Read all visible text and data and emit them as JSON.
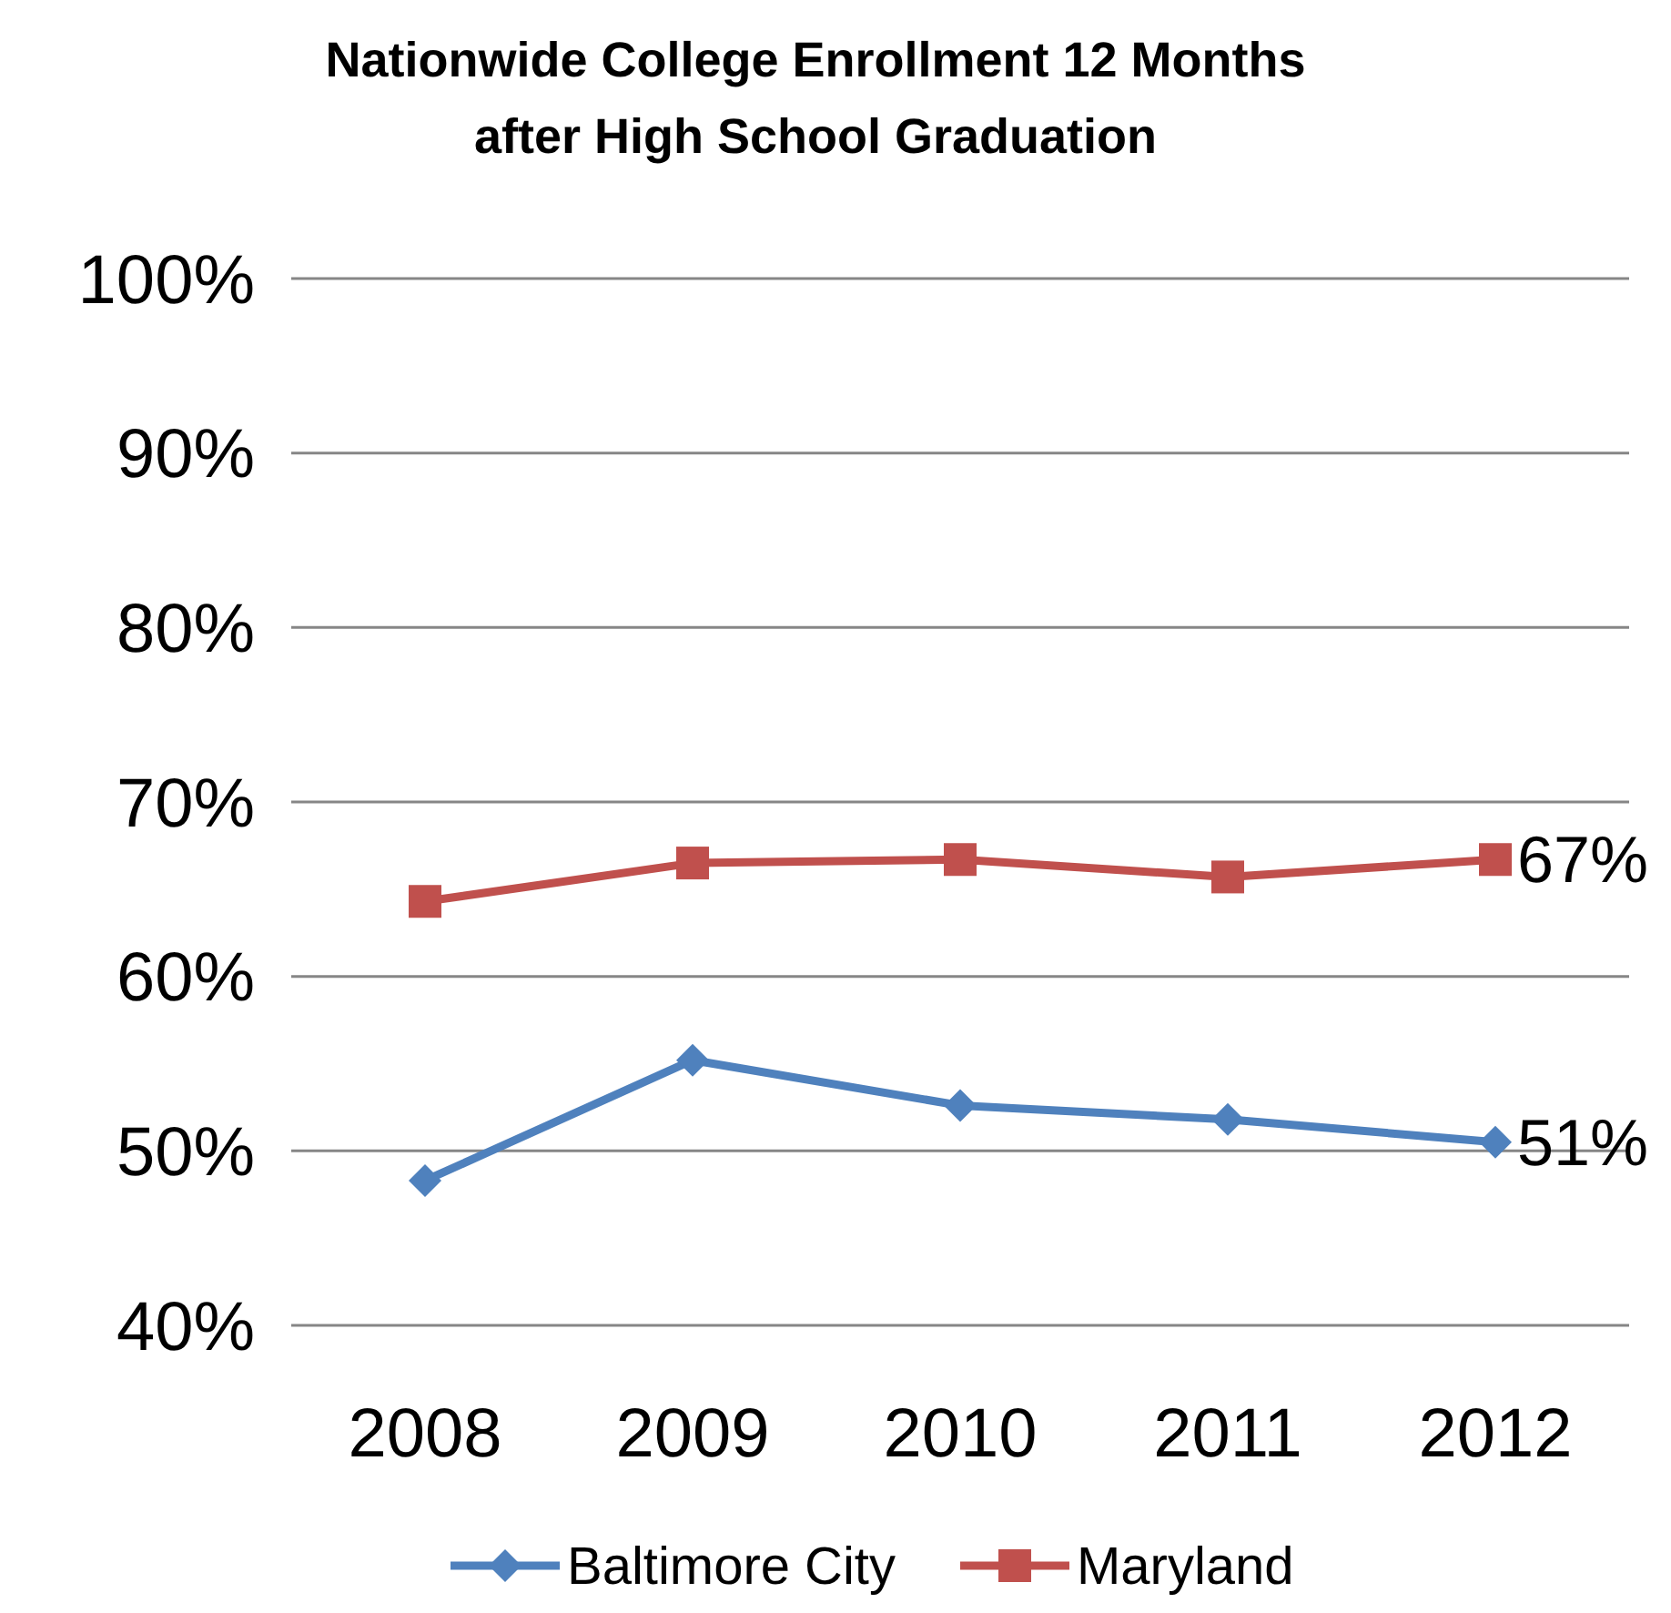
{
  "chart_data": {
    "type": "line",
    "title": "Nationwide College Enrollment 12 Months after High School Graduation",
    "categories": [
      "2008",
      "2009",
      "2010",
      "2011",
      "2012"
    ],
    "series": [
      {
        "name": "Baltimore City",
        "color": "#4f81bd",
        "marker": "diamond",
        "values": [
          48.3,
          55.2,
          52.6,
          51.8,
          50.5
        ],
        "value_labels": [
          null,
          null,
          null,
          null,
          "51%"
        ]
      },
      {
        "name": "Maryland",
        "color": "#c0504d",
        "marker": "square",
        "values": [
          64.3,
          66.5,
          66.7,
          65.7,
          66.7
        ],
        "value_labels": [
          null,
          null,
          null,
          null,
          "67%"
        ]
      }
    ],
    "ylim": [
      40,
      100
    ],
    "yticks": [
      {
        "value": 40,
        "label": "40%"
      },
      {
        "value": 50,
        "label": "50%"
      },
      {
        "value": 60,
        "label": "60%"
      },
      {
        "value": 70,
        "label": "70%"
      },
      {
        "value": 80,
        "label": "80%"
      },
      {
        "value": 90,
        "label": "90%"
      },
      {
        "value": 100,
        "label": "100%"
      }
    ],
    "grid": "y",
    "legend": "bottom"
  }
}
